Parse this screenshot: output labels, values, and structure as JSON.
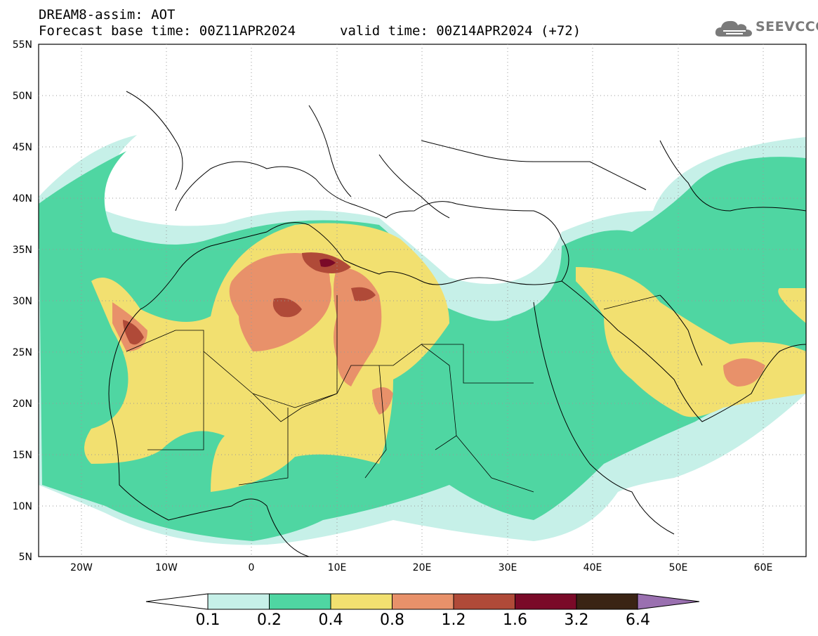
{
  "header": {
    "title_line1": "DREAM8-assim: AOT",
    "title_line2": "Forecast base time: 00Z11APR2024",
    "valid_time": "valid time: 00Z14APR2024 (+72)"
  },
  "logo": {
    "text": "SEEVCCC",
    "icon": "cloud-icon"
  },
  "map": {
    "lat_labels": [
      "55N",
      "50N",
      "45N",
      "40N",
      "35N",
      "30N",
      "25N",
      "20N",
      "15N",
      "10N",
      "5N"
    ],
    "lon_labels": [
      "20W",
      "10W",
      "0",
      "10E",
      "20E",
      "30E",
      "40E",
      "50E",
      "60E"
    ],
    "colors": {
      "c0": "#c6f0e8",
      "c1": "#4fd6a2",
      "c2": "#f2e070",
      "c3": "#e8916a",
      "c4": "#b04a38",
      "c5": "#7a0a28",
      "c6": "#3a2414",
      "c7": "#9a70b0"
    }
  },
  "colorbar": {
    "levels": [
      "0.1",
      "0.2",
      "0.4",
      "0.8",
      "1.2",
      "1.6",
      "3.2",
      "6.4"
    ],
    "colors": [
      "#c6f0e8",
      "#4fd6a2",
      "#f2e070",
      "#e8916a",
      "#b04a38",
      "#7a0a28",
      "#3a2414"
    ],
    "low_arrow_color": "#ffffff",
    "high_arrow_color": "#9a70b0"
  }
}
